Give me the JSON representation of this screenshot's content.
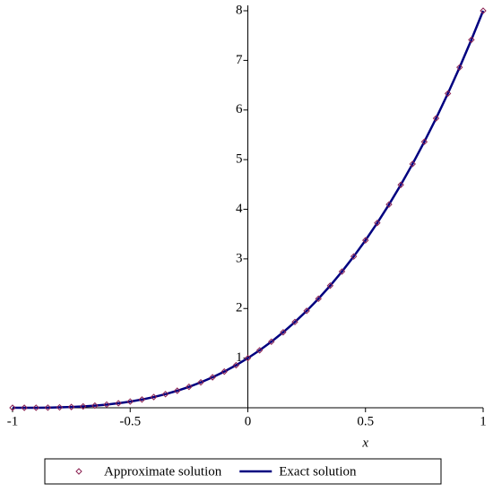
{
  "chart_data": {
    "type": "line",
    "xlabel": "x",
    "x": [
      -1,
      -0.95,
      -0.9,
      -0.85,
      -0.8,
      -0.75,
      -0.7,
      -0.65,
      -0.6,
      -0.55,
      -0.5,
      -0.45,
      -0.4,
      -0.35,
      -0.3,
      -0.25,
      -0.2,
      -0.15,
      -0.1,
      -0.05,
      0,
      0.05,
      0.1,
      0.15,
      0.2,
      0.25,
      0.3,
      0.35,
      0.4,
      0.45,
      0.5,
      0.55,
      0.6,
      0.65,
      0.7,
      0.75,
      0.8,
      0.85,
      0.9,
      0.95,
      1
    ],
    "series": [
      {
        "name": "Approximate solution",
        "color": "#8b2252",
        "marker": "diamond",
        "values": [
          0,
          0.000125,
          0.001,
          0.003375,
          0.008,
          0.015625,
          0.027,
          0.042875,
          0.064,
          0.091125,
          0.125,
          0.166375,
          0.216,
          0.274625,
          0.343,
          0.421875,
          0.512,
          0.614125,
          0.729,
          0.857375,
          1,
          1.157625,
          1.331,
          1.520875,
          1.728,
          1.953125,
          2.197,
          2.460375,
          2.744,
          3.048625,
          3.375,
          3.723875,
          4.096,
          4.492125,
          4.913,
          5.359375,
          5.832,
          6.331625,
          6.859,
          7.414875,
          8
        ]
      },
      {
        "name": "Exact solution",
        "color": "#000080",
        "marker": "line",
        "values": [
          0,
          0.000125,
          0.001,
          0.003375,
          0.008,
          0.015625,
          0.027,
          0.042875,
          0.064,
          0.091125,
          0.125,
          0.166375,
          0.216,
          0.274625,
          0.343,
          0.421875,
          0.512,
          0.614125,
          0.729,
          0.857375,
          1,
          1.157625,
          1.331,
          1.520875,
          1.728,
          1.953125,
          2.197,
          2.460375,
          2.744,
          3.048625,
          3.375,
          3.723875,
          4.096,
          4.492125,
          4.913,
          5.359375,
          5.832,
          6.331625,
          6.859,
          7.414875,
          8
        ]
      }
    ],
    "xlim": [
      -1,
      1
    ],
    "xticks": [
      -1,
      -0.5,
      0,
      0.5,
      1
    ],
    "ylim": [
      0,
      8
    ],
    "yticks": [
      1,
      2,
      3,
      4,
      5,
      6,
      7,
      8
    ]
  }
}
